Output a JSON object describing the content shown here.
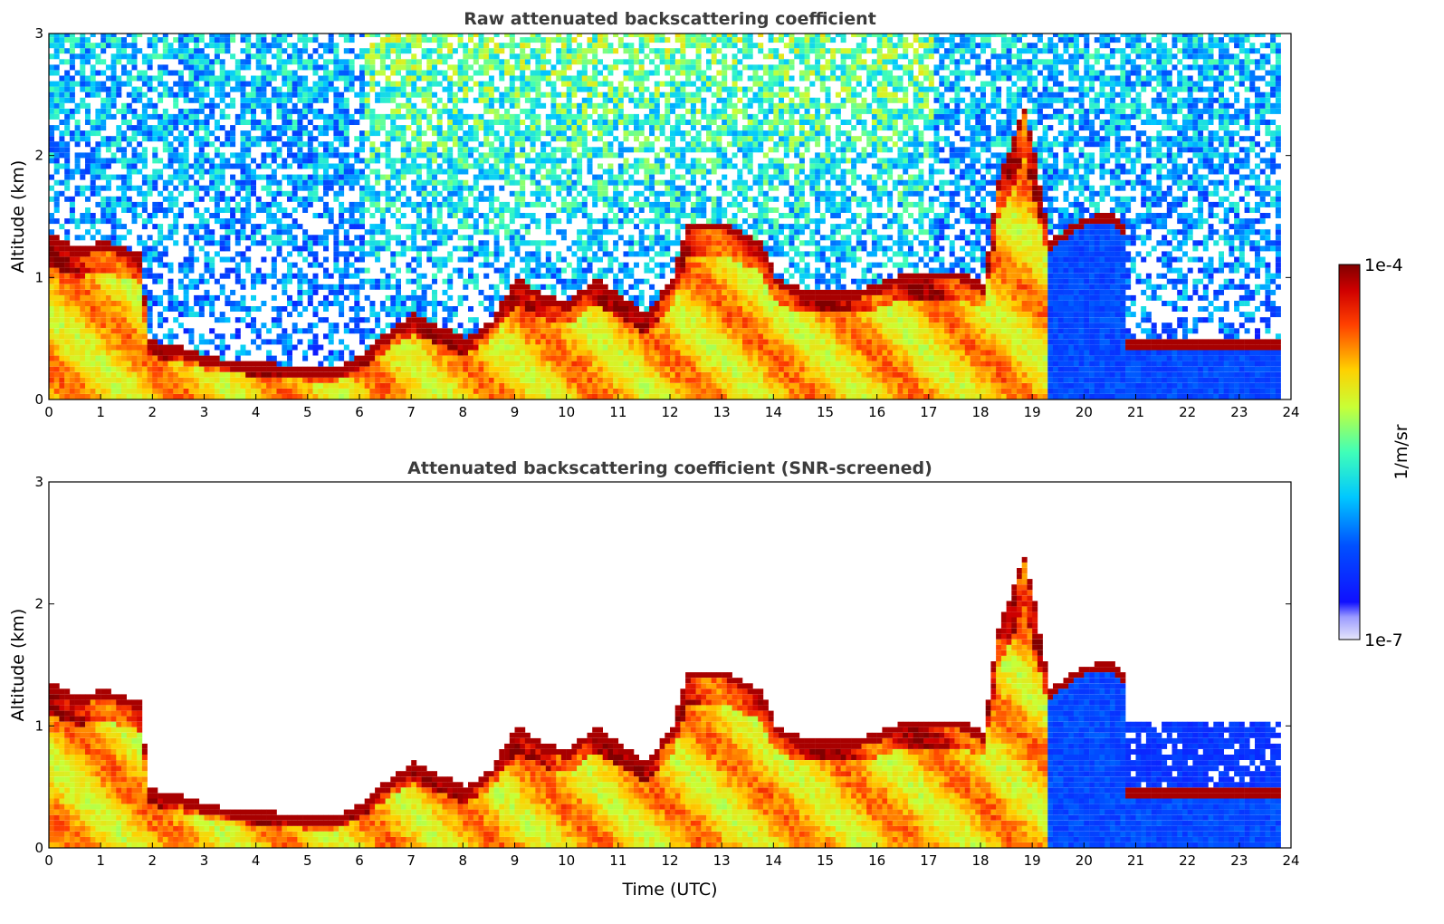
{
  "chart_data": [
    {
      "type": "heatmap",
      "title": "Raw attenuated backscattering coefficient",
      "xlabel": "",
      "ylabel": "Altitude (km)",
      "xlim": [
        0,
        24
      ],
      "ylim": [
        0,
        3
      ],
      "xticks": [
        "0",
        "1",
        "2",
        "3",
        "4",
        "5",
        "6",
        "7",
        "8",
        "9",
        "10",
        "11",
        "12",
        "13",
        "14",
        "15",
        "16",
        "17",
        "18",
        "19",
        "20",
        "21",
        "22",
        "23",
        "24"
      ],
      "yticks": [
        "0",
        "1",
        "2",
        "3"
      ],
      "screened": false,
      "boundary_layer_top_km": [
        [
          0,
          1.25
        ],
        [
          0.5,
          1.15
        ],
        [
          1.0,
          1.2
        ],
        [
          1.7,
          1.1
        ],
        [
          1.9,
          0.38
        ],
        [
          2.5,
          0.33
        ],
        [
          3.0,
          0.25
        ],
        [
          3.5,
          0.22
        ],
        [
          4.0,
          0.2
        ],
        [
          4.6,
          0.18
        ],
        [
          5.0,
          0.15
        ],
        [
          5.5,
          0.15
        ],
        [
          6.0,
          0.28
        ],
        [
          6.5,
          0.45
        ],
        [
          7.0,
          0.6
        ],
        [
          7.5,
          0.5
        ],
        [
          8.0,
          0.4
        ],
        [
          8.5,
          0.55
        ],
        [
          9.0,
          0.9
        ],
        [
          9.5,
          0.75
        ],
        [
          10.0,
          0.7
        ],
        [
          10.5,
          0.9
        ],
        [
          11.0,
          0.75
        ],
        [
          11.5,
          0.6
        ],
        [
          12.0,
          0.9
        ],
        [
          12.3,
          1.35
        ],
        [
          13.0,
          1.35
        ],
        [
          13.7,
          1.2
        ],
        [
          14.0,
          0.9
        ],
        [
          14.5,
          0.8
        ],
        [
          15.0,
          0.8
        ],
        [
          15.5,
          0.8
        ],
        [
          16.0,
          0.85
        ],
        [
          16.5,
          0.95
        ],
        [
          17.0,
          0.95
        ],
        [
          17.5,
          0.95
        ],
        [
          18.0,
          0.85
        ],
        [
          18.3,
          1.7
        ],
        [
          18.8,
          2.3
        ],
        [
          19.0,
          1.9
        ],
        [
          19.3,
          1.2
        ],
        [
          19.6,
          1.3
        ],
        [
          20.0,
          1.4
        ],
        [
          20.5,
          1.42
        ],
        [
          20.8,
          1.3
        ]
      ]
    },
    {
      "type": "heatmap",
      "title": "Attenuated backscattering coefficient (SNR-screened)",
      "xlabel": "Time (UTC)",
      "ylabel": "Altitude (km)",
      "xlim": [
        0,
        24
      ],
      "ylim": [
        0,
        3
      ],
      "xticks": [
        "0",
        "1",
        "2",
        "3",
        "4",
        "5",
        "6",
        "7",
        "8",
        "9",
        "10",
        "11",
        "12",
        "13",
        "14",
        "15",
        "16",
        "17",
        "18",
        "19",
        "20",
        "21",
        "22",
        "23",
        "24"
      ],
      "yticks": [
        "0",
        "1",
        "2",
        "3"
      ],
      "screened": true
    }
  ],
  "colorbar": {
    "label": "1/m/sr",
    "min_label": "1e-7",
    "max_label": "1e-4",
    "colormap": "jet"
  }
}
